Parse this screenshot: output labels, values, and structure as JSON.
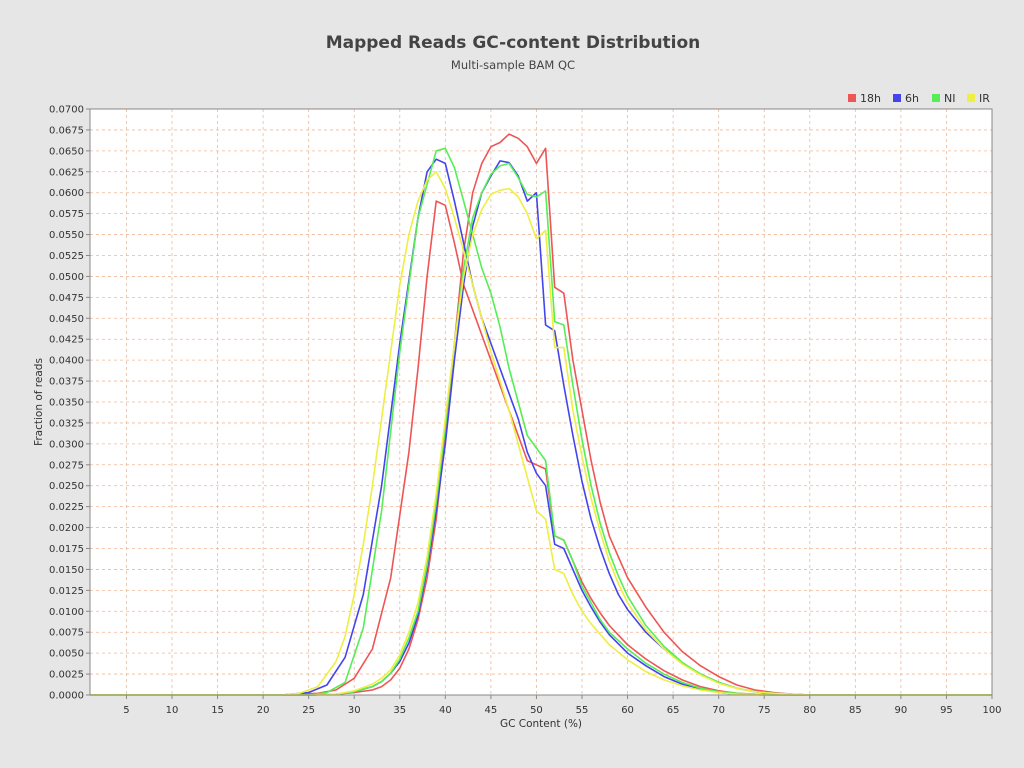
{
  "chart_data": {
    "type": "line",
    "title": "Mapped Reads GC-content Distribution",
    "subtitle": "Multi-sample BAM QC",
    "xlabel": "GC Content (%)",
    "ylabel": "Fraction of reads",
    "xlim": [
      1,
      100
    ],
    "ylim": [
      0,
      0.07
    ],
    "xticks": [
      5,
      10,
      15,
      20,
      25,
      30,
      35,
      40,
      45,
      50,
      55,
      60,
      65,
      70,
      75,
      80,
      85,
      90,
      95,
      100
    ],
    "yticks": [
      "0.0000",
      "0.0025",
      "0.0050",
      "0.0075",
      "0.0100",
      "0.0125",
      "0.0150",
      "0.0175",
      "0.0200",
      "0.0225",
      "0.0250",
      "0.0275",
      "0.0300",
      "0.0325",
      "0.0350",
      "0.0375",
      "0.0400",
      "0.0425",
      "0.0450",
      "0.0475",
      "0.0500",
      "0.0525",
      "0.0550",
      "0.0575",
      "0.0600",
      "0.0625",
      "0.0650",
      "0.0675",
      "0.0700"
    ],
    "grid": true,
    "legend_position": "top-right",
    "series": [
      {
        "name": "18h",
        "color": "#ee5555",
        "x": [
          1,
          22,
          26,
          28,
          30,
          32,
          34,
          36,
          37,
          38,
          39,
          40,
          41,
          42,
          43,
          44,
          45,
          46,
          47,
          48,
          49,
          50,
          51,
          52,
          53,
          54,
          55,
          56,
          57,
          58,
          60,
          62,
          64,
          66,
          68,
          70,
          72,
          74,
          76,
          78,
          80,
          85,
          90,
          100
        ],
        "y": [
          0,
          0,
          0.0002,
          0.0006,
          0.002,
          0.0055,
          0.014,
          0.029,
          0.039,
          0.05,
          0.059,
          0.0585,
          0.054,
          0.049,
          0.046,
          0.043,
          0.04,
          0.037,
          0.034,
          0.031,
          0.028,
          0.0275,
          0.027,
          0.019,
          0.0185,
          0.016,
          0.0135,
          0.0115,
          0.0098,
          0.0083,
          0.006,
          0.0043,
          0.0029,
          0.0018,
          0.001,
          0.0005,
          0.0002,
          0.0001,
          5e-05,
          0,
          0,
          0,
          0,
          0
        ]
      },
      {
        "name": "18h",
        "color": "#ee5555",
        "x": [
          1,
          25,
          28,
          30,
          32,
          33,
          34,
          35,
          36,
          37,
          38,
          39,
          40,
          41,
          42,
          43,
          44,
          45,
          46,
          47,
          48,
          49,
          50,
          51,
          52,
          53,
          54,
          55,
          56,
          57,
          58,
          59,
          60,
          62,
          64,
          66,
          68,
          70,
          72,
          74,
          76,
          78,
          80,
          85,
          90,
          100
        ],
        "y": [
          0,
          0,
          0.0001,
          0.0003,
          0.0006,
          0.001,
          0.0018,
          0.0032,
          0.0055,
          0.009,
          0.014,
          0.021,
          0.031,
          0.042,
          0.053,
          0.06,
          0.0635,
          0.0655,
          0.066,
          0.067,
          0.0665,
          0.0655,
          0.0635,
          0.0653,
          0.0487,
          0.048,
          0.04,
          0.034,
          0.028,
          0.023,
          0.019,
          0.0165,
          0.014,
          0.0105,
          0.0075,
          0.0052,
          0.0035,
          0.0022,
          0.0012,
          0.0006,
          0.0003,
          0.0001,
          0,
          0,
          0,
          0
        ]
      },
      {
        "name": "6h",
        "color": "#4444ee",
        "x": [
          1,
          22,
          25,
          27,
          29,
          31,
          33,
          35,
          37,
          38,
          39,
          40,
          41,
          42,
          43,
          44,
          45,
          46,
          47,
          48,
          49,
          50,
          51,
          52,
          53,
          54,
          55,
          56,
          57,
          58,
          60,
          62,
          64,
          66,
          68,
          70,
          72,
          74,
          76,
          78,
          80,
          85,
          90,
          100
        ],
        "y": [
          0,
          0,
          0.0003,
          0.0012,
          0.0045,
          0.012,
          0.025,
          0.042,
          0.057,
          0.0625,
          0.064,
          0.0635,
          0.059,
          0.054,
          0.049,
          0.045,
          0.042,
          0.039,
          0.036,
          0.033,
          0.029,
          0.0265,
          0.025,
          0.018,
          0.0175,
          0.015,
          0.0125,
          0.0105,
          0.0087,
          0.0072,
          0.005,
          0.0035,
          0.0022,
          0.0013,
          0.0007,
          0.0003,
          0.0001,
          5e-05,
          0,
          0,
          0,
          0,
          0,
          0
        ]
      },
      {
        "name": "6h",
        "color": "#4444ee",
        "x": [
          1,
          25,
          28,
          30,
          32,
          33,
          34,
          35,
          36,
          37,
          38,
          39,
          40,
          41,
          42,
          43,
          44,
          45,
          46,
          47,
          48,
          49,
          50,
          51,
          52,
          53,
          54,
          55,
          56,
          57,
          58,
          59,
          60,
          62,
          64,
          66,
          68,
          70,
          72,
          74,
          76,
          78,
          80,
          85,
          90,
          100
        ],
        "y": [
          0,
          0,
          0.0001,
          0.0004,
          0.001,
          0.0016,
          0.0026,
          0.004,
          0.0062,
          0.0095,
          0.015,
          0.022,
          0.03,
          0.04,
          0.049,
          0.056,
          0.06,
          0.062,
          0.0638,
          0.0636,
          0.062,
          0.059,
          0.06,
          0.0442,
          0.0435,
          0.037,
          0.031,
          0.0255,
          0.021,
          0.0175,
          0.0145,
          0.012,
          0.0102,
          0.0075,
          0.0055,
          0.0038,
          0.0025,
          0.0015,
          0.0008,
          0.0004,
          0.0002,
          0.0001,
          0,
          0,
          0,
          0
        ]
      },
      {
        "name": "NI",
        "color": "#55ee55",
        "x": [
          1,
          25,
          27,
          29,
          31,
          33,
          35,
          37,
          38,
          39,
          40,
          41,
          42,
          43,
          44,
          45,
          46,
          47,
          48,
          49,
          50,
          51,
          52,
          53,
          54,
          55,
          56,
          57,
          58,
          60,
          62,
          64,
          66,
          68,
          70,
          72,
          74,
          76,
          78,
          80,
          85,
          90,
          100
        ],
        "y": [
          0,
          0,
          0.0003,
          0.0015,
          0.008,
          0.022,
          0.041,
          0.057,
          0.061,
          0.065,
          0.0653,
          0.063,
          0.059,
          0.055,
          0.051,
          0.048,
          0.044,
          0.039,
          0.035,
          0.031,
          0.0295,
          0.028,
          0.019,
          0.0185,
          0.016,
          0.013,
          0.011,
          0.009,
          0.0075,
          0.0055,
          0.0038,
          0.0025,
          0.0015,
          0.0008,
          0.0004,
          0.0002,
          0.0001,
          0,
          0,
          0,
          0,
          0,
          0
        ]
      },
      {
        "name": "NI",
        "color": "#55ee55",
        "x": [
          1,
          25,
          28,
          30,
          32,
          33,
          34,
          35,
          36,
          37,
          38,
          39,
          40,
          41,
          42,
          43,
          44,
          45,
          46,
          47,
          48,
          49,
          50,
          51,
          52,
          53,
          54,
          55,
          56,
          57,
          58,
          59,
          60,
          62,
          64,
          66,
          68,
          70,
          72,
          74,
          76,
          78,
          80,
          85,
          90,
          100
        ],
        "y": [
          0,
          0,
          0.0001,
          0.0004,
          0.001,
          0.0016,
          0.0026,
          0.0043,
          0.0068,
          0.01,
          0.0155,
          0.023,
          0.032,
          0.042,
          0.051,
          0.057,
          0.06,
          0.0622,
          0.0632,
          0.0635,
          0.0618,
          0.0598,
          0.0595,
          0.0602,
          0.0446,
          0.0442,
          0.037,
          0.0305,
          0.025,
          0.0205,
          0.017,
          0.0142,
          0.0118,
          0.0083,
          0.0058,
          0.0039,
          0.0025,
          0.0015,
          0.0008,
          0.0004,
          0.0002,
          0.0001,
          0,
          0,
          0,
          0
        ]
      },
      {
        "name": "IR",
        "color": "#eeee44",
        "x": [
          1,
          22,
          24,
          26,
          28,
          29,
          30,
          31,
          32,
          33,
          34,
          35,
          36,
          37,
          38,
          39,
          40,
          41,
          42,
          43,
          44,
          45,
          46,
          47,
          48,
          49,
          50,
          51,
          52,
          53,
          54,
          55,
          56,
          58,
          60,
          62,
          64,
          66,
          68,
          70,
          72,
          74,
          76,
          78,
          80,
          85,
          90,
          100
        ],
        "y": [
          0,
          0,
          0.0002,
          0.001,
          0.004,
          0.007,
          0.012,
          0.018,
          0.025,
          0.033,
          0.041,
          0.049,
          0.055,
          0.059,
          0.0615,
          0.0625,
          0.0605,
          0.057,
          0.053,
          0.049,
          0.045,
          0.041,
          0.0375,
          0.034,
          0.03,
          0.026,
          0.022,
          0.021,
          0.015,
          0.0145,
          0.012,
          0.01,
          0.0085,
          0.006,
          0.0042,
          0.0028,
          0.0018,
          0.0011,
          0.0006,
          0.0003,
          0.0001,
          5e-05,
          0,
          0,
          0,
          0,
          0,
          0
        ]
      },
      {
        "name": "IR",
        "color": "#eeee44",
        "x": [
          1,
          25,
          28,
          30,
          32,
          33,
          34,
          35,
          36,
          37,
          38,
          39,
          40,
          41,
          42,
          43,
          44,
          45,
          46,
          47,
          48,
          49,
          50,
          51,
          52,
          53,
          54,
          55,
          56,
          57,
          58,
          59,
          60,
          62,
          64,
          66,
          68,
          70,
          72,
          74,
          76,
          78,
          80,
          85,
          90,
          100
        ],
        "y": [
          0,
          0,
          0.0001,
          0.0005,
          0.0013,
          0.002,
          0.003,
          0.0048,
          0.0075,
          0.011,
          0.0165,
          0.024,
          0.033,
          0.042,
          0.05,
          0.055,
          0.058,
          0.0598,
          0.0603,
          0.0605,
          0.0595,
          0.0575,
          0.0545,
          0.0555,
          0.0415,
          0.0415,
          0.034,
          0.0285,
          0.0235,
          0.0195,
          0.016,
          0.0133,
          0.011,
          0.0078,
          0.0055,
          0.0037,
          0.0024,
          0.0014,
          0.0008,
          0.0004,
          0.0002,
          0.0001,
          0,
          0,
          0,
          0
        ]
      }
    ],
    "legend": [
      {
        "name": "18h",
        "color": "#ee5555"
      },
      {
        "name": "6h",
        "color": "#4444ee"
      },
      {
        "name": "NI",
        "color": "#55ee55"
      },
      {
        "name": "IR",
        "color": "#eeee44"
      }
    ]
  }
}
